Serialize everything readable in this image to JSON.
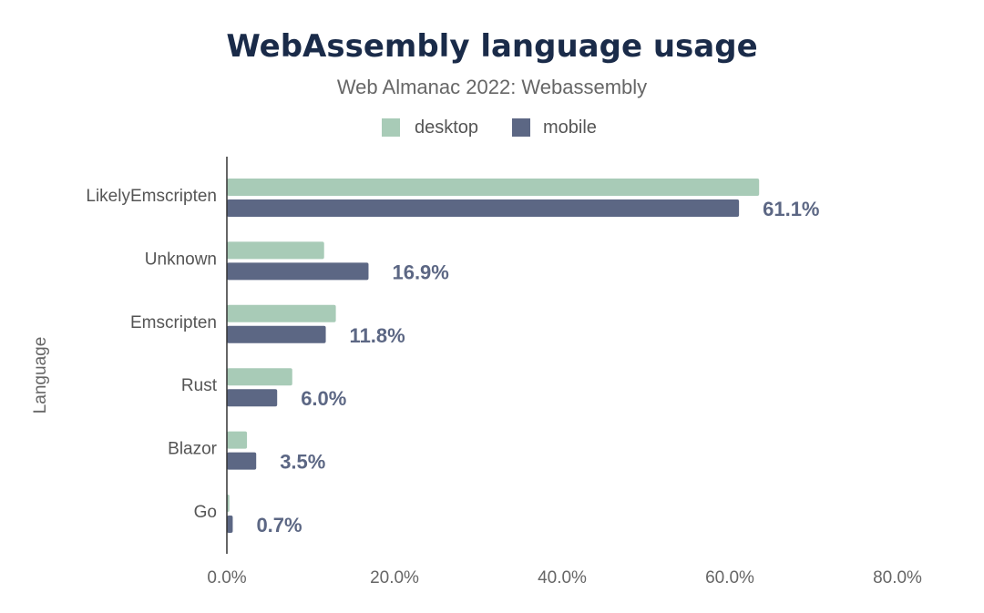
{
  "chart_data": {
    "type": "bar",
    "orientation": "horizontal",
    "title": "WebAssembly language usage",
    "subtitle": "Web Almanac 2022: Webassembly",
    "xlabel": "",
    "ylabel": "Language",
    "categories": [
      "LikelyEmscripten",
      "Unknown",
      "Emscripten",
      "Rust",
      "Blazor",
      "Go"
    ],
    "series": [
      {
        "name": "desktop",
        "color": "#a8cbb7",
        "values": [
          63.5,
          11.6,
          13.0,
          7.8,
          2.4,
          0.3
        ]
      },
      {
        "name": "mobile",
        "color": "#5c6784",
        "values": [
          61.1,
          16.9,
          11.8,
          6.0,
          3.5,
          0.7
        ]
      }
    ],
    "data_labels": {
      "series": "mobile",
      "texts": [
        "61.1%",
        "16.9%",
        "11.8%",
        "6.0%",
        "3.5%",
        "0.7%"
      ]
    },
    "xlim": [
      0,
      80
    ],
    "ticks": [
      0,
      20,
      40,
      60,
      80
    ],
    "tick_labels": [
      "0.0%",
      "20.0%",
      "40.0%",
      "60.0%",
      "80.0%"
    ],
    "legend": {
      "position": "top-center",
      "entries": [
        "desktop",
        "mobile"
      ]
    },
    "grid": false
  }
}
